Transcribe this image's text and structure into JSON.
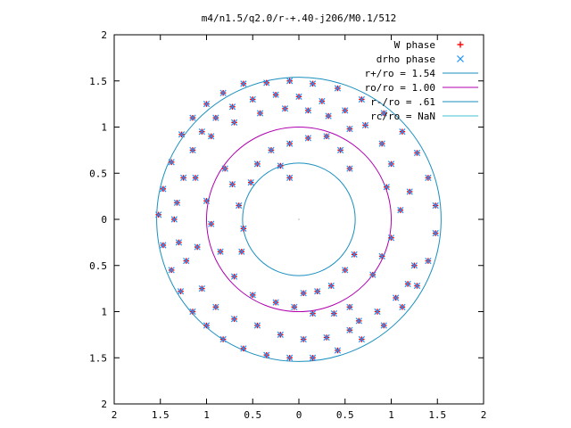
{
  "chart_data": {
    "type": "scatter",
    "title": "m4/n1.5/q2.0/r-+.40-j206/M0.1/512",
    "xlim": [
      -2,
      2
    ],
    "ylim": [
      -2,
      2
    ],
    "x_ticks": [
      -2,
      -1.5,
      -1,
      -0.5,
      0,
      0.5,
      1,
      1.5,
      2
    ],
    "y_ticks": [
      -2,
      -1.5,
      -1,
      -0.5,
      0,
      0.5,
      1,
      1.5,
      2
    ],
    "x_tick_labels": [
      "2",
      "1.5",
      "1",
      "0.5",
      "0",
      "0.5",
      "1",
      "1.5",
      "2"
    ],
    "y_tick_labels": [
      "2",
      "1.5",
      "1",
      "0.5",
      "0",
      "0.5",
      "1",
      "1.5",
      "2"
    ],
    "grid": false,
    "legend_position": "top-right",
    "series": [
      {
        "name": "W phase",
        "marker": "plus",
        "color": "#ff0000",
        "points": [
          [
            -1.52,
            0.05
          ],
          [
            -1.47,
            0.33
          ],
          [
            -1.38,
            0.62
          ],
          [
            -1.27,
            0.92
          ],
          [
            -1.15,
            1.1
          ],
          [
            -1.0,
            1.25
          ],
          [
            -0.82,
            1.37
          ],
          [
            -0.6,
            1.47
          ],
          [
            -0.35,
            1.48
          ],
          [
            -0.1,
            1.5
          ],
          [
            0.15,
            1.47
          ],
          [
            0.42,
            1.42
          ],
          [
            0.68,
            1.3
          ],
          [
            0.92,
            1.15
          ],
          [
            1.12,
            0.95
          ],
          [
            1.28,
            0.72
          ],
          [
            1.4,
            0.45
          ],
          [
            1.48,
            0.15
          ],
          [
            1.48,
            -0.15
          ],
          [
            1.4,
            -0.45
          ],
          [
            1.28,
            -0.72
          ],
          [
            1.12,
            -0.95
          ],
          [
            0.92,
            -1.15
          ],
          [
            0.68,
            -1.3
          ],
          [
            0.42,
            -1.42
          ],
          [
            0.15,
            -1.5
          ],
          [
            -0.1,
            -1.5
          ],
          [
            -0.35,
            -1.47
          ],
          [
            -0.6,
            -1.4
          ],
          [
            -0.82,
            -1.3
          ],
          [
            -1.0,
            -1.15
          ],
          [
            -1.15,
            -1.0
          ],
          [
            -1.28,
            -0.78
          ],
          [
            -1.38,
            -0.55
          ],
          [
            -1.47,
            -0.28
          ],
          [
            -1.32,
            0.18
          ],
          [
            -1.25,
            0.45
          ],
          [
            -1.15,
            0.75
          ],
          [
            -1.05,
            0.95
          ],
          [
            -0.9,
            1.1
          ],
          [
            -0.72,
            1.22
          ],
          [
            -0.5,
            1.3
          ],
          [
            -0.25,
            1.35
          ],
          [
            0.0,
            1.33
          ],
          [
            0.25,
            1.28
          ],
          [
            0.5,
            1.18
          ],
          [
            0.72,
            1.02
          ],
          [
            0.9,
            0.82
          ],
          [
            1.0,
            0.6
          ],
          [
            0.95,
            0.35
          ],
          [
            -0.95,
            0.9
          ],
          [
            -0.7,
            1.05
          ],
          [
            -0.42,
            1.15
          ],
          [
            -0.15,
            1.2
          ],
          [
            0.1,
            1.18
          ],
          [
            0.32,
            1.12
          ],
          [
            0.55,
            0.98
          ],
          [
            -1.05,
            -0.75
          ],
          [
            -0.9,
            -0.95
          ],
          [
            -0.7,
            -1.08
          ],
          [
            -0.45,
            -1.15
          ],
          [
            -0.2,
            -1.25
          ],
          [
            0.05,
            -1.3
          ],
          [
            0.3,
            -1.28
          ],
          [
            0.55,
            -1.2
          ],
          [
            -1.0,
            0.2
          ],
          [
            -0.95,
            -0.05
          ],
          [
            -0.85,
            -0.35
          ],
          [
            -0.7,
            -0.62
          ],
          [
            -0.5,
            -0.82
          ],
          [
            -0.25,
            -0.9
          ],
          [
            -0.05,
            -0.95
          ],
          [
            0.15,
            -1.02
          ],
          [
            0.38,
            -1.02
          ],
          [
            0.55,
            -0.95
          ],
          [
            -0.52,
            0.4
          ],
          [
            -0.45,
            0.6
          ],
          [
            -0.3,
            0.75
          ],
          [
            -0.1,
            0.82
          ],
          [
            0.1,
            0.88
          ],
          [
            -0.2,
            0.58
          ],
          [
            -0.1,
            0.45
          ],
          [
            0.3,
            0.9
          ],
          [
            0.45,
            0.75
          ],
          [
            0.55,
            0.55
          ],
          [
            0.6,
            -0.38
          ],
          [
            0.5,
            -0.55
          ],
          [
            0.35,
            -0.72
          ],
          [
            0.2,
            -0.78
          ],
          [
            0.05,
            -0.8
          ],
          [
            0.8,
            -0.6
          ],
          [
            0.9,
            -0.4
          ],
          [
            1.0,
            -0.2
          ],
          [
            1.1,
            0.1
          ],
          [
            1.2,
            0.3
          ],
          [
            1.25,
            -0.5
          ],
          [
            1.18,
            -0.7
          ],
          [
            1.05,
            -0.85
          ],
          [
            0.85,
            -1.0
          ],
          [
            0.65,
            -1.1
          ],
          [
            -0.62,
            -0.35
          ],
          [
            -0.6,
            -0.1
          ],
          [
            -0.65,
            0.15
          ],
          [
            -0.72,
            0.38
          ],
          [
            -0.8,
            0.55
          ],
          [
            -1.22,
            -0.45
          ],
          [
            -1.3,
            -0.25
          ],
          [
            -1.35,
            0.0
          ],
          [
            -1.1,
            -0.3
          ],
          [
            -1.12,
            0.45
          ]
        ]
      },
      {
        "name": "drho phase",
        "marker": "cross",
        "color": "#1e90ff",
        "points": [
          [
            -1.52,
            0.05
          ],
          [
            -1.47,
            0.33
          ],
          [
            -1.38,
            0.62
          ],
          [
            -1.27,
            0.92
          ],
          [
            -1.15,
            1.1
          ],
          [
            -1.0,
            1.25
          ],
          [
            -0.82,
            1.37
          ],
          [
            -0.6,
            1.47
          ],
          [
            -0.35,
            1.48
          ],
          [
            -0.1,
            1.5
          ],
          [
            0.15,
            1.47
          ],
          [
            0.42,
            1.42
          ],
          [
            0.68,
            1.3
          ],
          [
            0.92,
            1.15
          ],
          [
            1.12,
            0.95
          ],
          [
            1.28,
            0.72
          ],
          [
            1.4,
            0.45
          ],
          [
            1.48,
            0.15
          ],
          [
            1.48,
            -0.15
          ],
          [
            1.4,
            -0.45
          ],
          [
            1.28,
            -0.72
          ],
          [
            1.12,
            -0.95
          ],
          [
            0.92,
            -1.15
          ],
          [
            0.68,
            -1.3
          ],
          [
            0.42,
            -1.42
          ],
          [
            0.15,
            -1.5
          ],
          [
            -0.1,
            -1.5
          ],
          [
            -0.35,
            -1.47
          ],
          [
            -0.6,
            -1.4
          ],
          [
            -0.82,
            -1.3
          ],
          [
            -1.0,
            -1.15
          ],
          [
            -1.15,
            -1.0
          ],
          [
            -1.28,
            -0.78
          ],
          [
            -1.38,
            -0.55
          ],
          [
            -1.47,
            -0.28
          ],
          [
            -1.32,
            0.18
          ],
          [
            -1.25,
            0.45
          ],
          [
            -1.15,
            0.75
          ],
          [
            -1.05,
            0.95
          ],
          [
            -0.9,
            1.1
          ],
          [
            -0.72,
            1.22
          ],
          [
            -0.5,
            1.3
          ],
          [
            -0.25,
            1.35
          ],
          [
            0.0,
            1.33
          ],
          [
            0.25,
            1.28
          ],
          [
            0.5,
            1.18
          ],
          [
            0.72,
            1.02
          ],
          [
            0.9,
            0.82
          ],
          [
            1.0,
            0.6
          ],
          [
            0.95,
            0.35
          ],
          [
            -0.95,
            0.9
          ],
          [
            -0.7,
            1.05
          ],
          [
            -0.42,
            1.15
          ],
          [
            -0.15,
            1.2
          ],
          [
            0.1,
            1.18
          ],
          [
            0.32,
            1.12
          ],
          [
            0.55,
            0.98
          ],
          [
            -1.05,
            -0.75
          ],
          [
            -0.9,
            -0.95
          ],
          [
            -0.7,
            -1.08
          ],
          [
            -0.45,
            -1.15
          ],
          [
            -0.2,
            -1.25
          ],
          [
            0.05,
            -1.3
          ],
          [
            0.3,
            -1.28
          ],
          [
            0.55,
            -1.2
          ],
          [
            -1.0,
            0.2
          ],
          [
            -0.95,
            -0.05
          ],
          [
            -0.85,
            -0.35
          ],
          [
            -0.7,
            -0.62
          ],
          [
            -0.5,
            -0.82
          ],
          [
            -0.25,
            -0.9
          ],
          [
            -0.05,
            -0.95
          ],
          [
            0.15,
            -1.02
          ],
          [
            0.38,
            -1.02
          ],
          [
            0.55,
            -0.95
          ],
          [
            -0.52,
            0.4
          ],
          [
            -0.45,
            0.6
          ],
          [
            -0.3,
            0.75
          ],
          [
            -0.1,
            0.82
          ],
          [
            0.1,
            0.88
          ],
          [
            -0.2,
            0.58
          ],
          [
            -0.1,
            0.45
          ],
          [
            0.3,
            0.9
          ],
          [
            0.45,
            0.75
          ],
          [
            0.55,
            0.55
          ],
          [
            0.6,
            -0.38
          ],
          [
            0.5,
            -0.55
          ],
          [
            0.35,
            -0.72
          ],
          [
            0.2,
            -0.78
          ],
          [
            0.05,
            -0.8
          ],
          [
            0.8,
            -0.6
          ],
          [
            0.9,
            -0.4
          ],
          [
            1.0,
            -0.2
          ],
          [
            1.1,
            0.1
          ],
          [
            1.2,
            0.3
          ],
          [
            1.25,
            -0.5
          ],
          [
            1.18,
            -0.7
          ],
          [
            1.05,
            -0.85
          ],
          [
            0.85,
            -1.0
          ],
          [
            0.65,
            -1.1
          ],
          [
            -0.62,
            -0.35
          ],
          [
            -0.6,
            -0.1
          ],
          [
            -0.65,
            0.15
          ],
          [
            -0.72,
            0.38
          ],
          [
            -0.8,
            0.55
          ],
          [
            -1.22,
            -0.45
          ],
          [
            -1.3,
            -0.25
          ],
          [
            -1.35,
            0.0
          ],
          [
            -1.1,
            -0.3
          ],
          [
            -1.12,
            0.45
          ]
        ]
      },
      {
        "name": "r+/ro = 1.54",
        "type": "circle",
        "radius": 1.54,
        "color": "#1a8fbf"
      },
      {
        "name": "ro/ro = 1.00",
        "type": "circle",
        "radius": 1.0,
        "color": "#b000b0"
      },
      {
        "name": "r-/ro = .61",
        "type": "circle",
        "radius": 0.61,
        "color": "#1a8fbf"
      },
      {
        "name": "rc/ro = NaN",
        "type": "circle",
        "radius": null,
        "color": "#40c0d0"
      }
    ]
  }
}
